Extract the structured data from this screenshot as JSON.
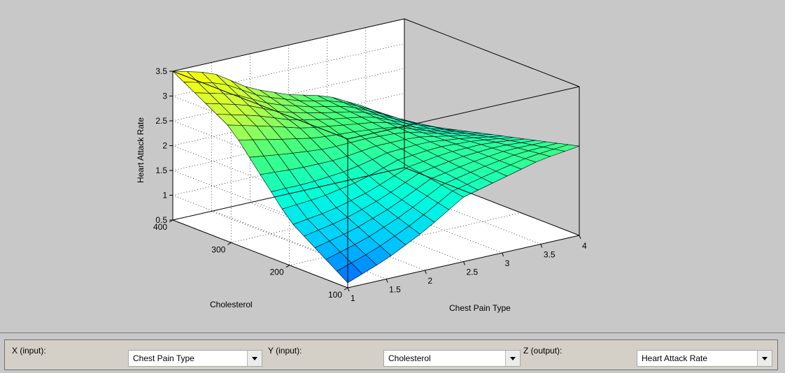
{
  "plot": {
    "type": "surface",
    "x_axis_label": "Chest Pain Type",
    "y_axis_label": "Cholesterol",
    "z_axis_label": "Heart Attack Rate",
    "x_ticks": [
      "1",
      "1.5",
      "2",
      "2.5",
      "3",
      "3.5",
      "4"
    ],
    "y_ticks": [
      "100",
      "200",
      "300",
      "400"
    ],
    "z_ticks": [
      "0.5",
      "1",
      "1.5",
      "2",
      "2.5",
      "3",
      "3.5"
    ],
    "grid": true,
    "colormap": [
      "#0050ff",
      "#00c8ff",
      "#00ffdc",
      "#40ff80",
      "#c8ff40",
      "#ffff00"
    ]
  },
  "chart_data": {
    "type": "heatmap",
    "xlabel": "Chest Pain Type",
    "ylabel": "Cholesterol",
    "zlabel": "Heart Attack Rate",
    "xlim": [
      1,
      4
    ],
    "ylim": [
      100,
      400
    ],
    "zlim": [
      0.5,
      3.5
    ],
    "x": [
      1,
      1.5,
      2,
      2.5,
      3,
      3.5,
      4
    ],
    "y": [
      100,
      200,
      300,
      400
    ],
    "z": [
      [
        0.6,
        0.9,
        1.3,
        1.8,
        2.0,
        2.2,
        2.3
      ],
      [
        1.4,
        1.5,
        1.7,
        2.0,
        2.1,
        2.1,
        2.0
      ],
      [
        2.8,
        2.6,
        2.4,
        2.3,
        2.2,
        1.9,
        1.7
      ],
      [
        3.5,
        3.3,
        2.8,
        2.5,
        2.3,
        1.9,
        1.4
      ]
    ]
  },
  "controls": {
    "x_label": "X (input):",
    "x_value": "Chest Pain Type",
    "y_label": "Y (input):",
    "y_value": "Cholesterol",
    "z_label": "Z (output):",
    "z_value": "Heart Attack Rate"
  }
}
